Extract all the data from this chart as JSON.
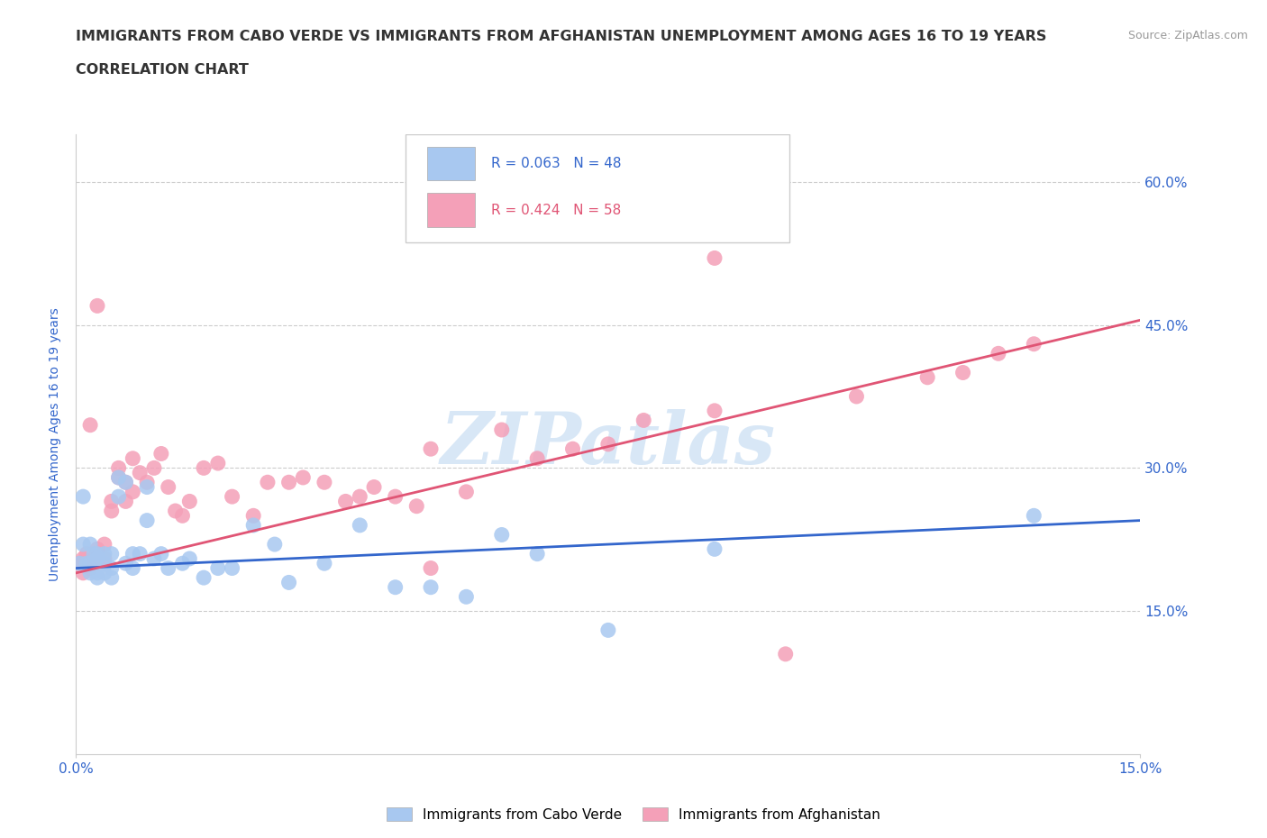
{
  "title_line1": "IMMIGRANTS FROM CABO VERDE VS IMMIGRANTS FROM AFGHANISTAN UNEMPLOYMENT AMONG AGES 16 TO 19 YEARS",
  "title_line2": "CORRELATION CHART",
  "source_text": "Source: ZipAtlas.com",
  "ylabel": "Unemployment Among Ages 16 to 19 years",
  "xlim": [
    0.0,
    0.15
  ],
  "ylim": [
    0.0,
    0.65
  ],
  "yticks": [
    0.15,
    0.3,
    0.45,
    0.6
  ],
  "ytick_labels": [
    "15.0%",
    "30.0%",
    "45.0%",
    "60.0%"
  ],
  "xticks": [
    0.0,
    0.15
  ],
  "xtick_labels": [
    "0.0%",
    "15.0%"
  ],
  "cabo_verde_R": 0.063,
  "cabo_verde_N": 48,
  "afghanistan_R": 0.424,
  "afghanistan_N": 58,
  "cabo_verde_color": "#a8c8f0",
  "afghanistan_color": "#f4a0b8",
  "cabo_verde_line_color": "#3366cc",
  "afghanistan_line_color": "#e05575",
  "watermark": "ZIPatlas",
  "cabo_verde_x": [
    0.0005,
    0.001,
    0.001,
    0.0015,
    0.002,
    0.002,
    0.002,
    0.0025,
    0.003,
    0.003,
    0.003,
    0.003,
    0.004,
    0.004,
    0.004,
    0.005,
    0.005,
    0.005,
    0.006,
    0.006,
    0.007,
    0.007,
    0.008,
    0.008,
    0.009,
    0.01,
    0.01,
    0.011,
    0.012,
    0.013,
    0.015,
    0.016,
    0.018,
    0.02,
    0.022,
    0.025,
    0.028,
    0.03,
    0.035,
    0.04,
    0.045,
    0.05,
    0.055,
    0.06,
    0.065,
    0.075,
    0.09,
    0.135
  ],
  "cabo_verde_y": [
    0.2,
    0.22,
    0.27,
    0.2,
    0.22,
    0.2,
    0.19,
    0.21,
    0.21,
    0.205,
    0.19,
    0.185,
    0.21,
    0.2,
    0.19,
    0.21,
    0.195,
    0.185,
    0.29,
    0.27,
    0.285,
    0.2,
    0.21,
    0.195,
    0.21,
    0.28,
    0.245,
    0.205,
    0.21,
    0.195,
    0.2,
    0.205,
    0.185,
    0.195,
    0.195,
    0.24,
    0.22,
    0.18,
    0.2,
    0.24,
    0.175,
    0.175,
    0.165,
    0.23,
    0.21,
    0.13,
    0.215,
    0.25
  ],
  "afghanistan_x": [
    0.0005,
    0.001,
    0.001,
    0.0015,
    0.002,
    0.002,
    0.003,
    0.003,
    0.003,
    0.004,
    0.004,
    0.005,
    0.005,
    0.006,
    0.006,
    0.007,
    0.007,
    0.008,
    0.008,
    0.009,
    0.01,
    0.011,
    0.012,
    0.013,
    0.014,
    0.015,
    0.016,
    0.018,
    0.02,
    0.022,
    0.025,
    0.027,
    0.03,
    0.032,
    0.035,
    0.038,
    0.04,
    0.042,
    0.045,
    0.048,
    0.05,
    0.055,
    0.06,
    0.065,
    0.07,
    0.075,
    0.08,
    0.09,
    0.1,
    0.11,
    0.12,
    0.125,
    0.13,
    0.135,
    0.09,
    0.05,
    0.003,
    0.002
  ],
  "afghanistan_y": [
    0.2,
    0.205,
    0.19,
    0.21,
    0.2,
    0.195,
    0.21,
    0.2,
    0.215,
    0.205,
    0.22,
    0.255,
    0.265,
    0.29,
    0.3,
    0.265,
    0.285,
    0.275,
    0.31,
    0.295,
    0.285,
    0.3,
    0.315,
    0.28,
    0.255,
    0.25,
    0.265,
    0.3,
    0.305,
    0.27,
    0.25,
    0.285,
    0.285,
    0.29,
    0.285,
    0.265,
    0.27,
    0.28,
    0.27,
    0.26,
    0.32,
    0.275,
    0.34,
    0.31,
    0.32,
    0.325,
    0.35,
    0.36,
    0.105,
    0.375,
    0.395,
    0.4,
    0.42,
    0.43,
    0.52,
    0.195,
    0.47,
    0.345
  ],
  "grid_color": "#cccccc",
  "background_color": "#ffffff",
  "title_color": "#333333",
  "axis_label_color": "#3366cc",
  "tick_label_color": "#3366cc"
}
